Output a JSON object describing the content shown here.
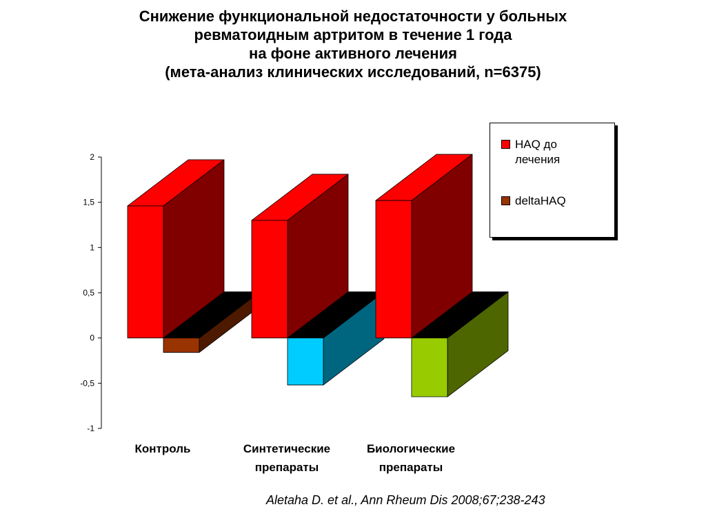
{
  "title": {
    "line1": "Снижение функциональной недостаточности у больных",
    "line2": "ревматоидным артритом в течение 1 года",
    "line3": "на фоне активного лечения",
    "line4": "(мета-анализ клинических исследований, n=6375)"
  },
  "categories": [
    {
      "line1": "Контроль",
      "line2": ""
    },
    {
      "line1": "Синтетические",
      "line2": "препараты"
    },
    {
      "line1": "Биологические",
      "line2": "препараты"
    }
  ],
  "legend": {
    "items": [
      {
        "label_line1": "HAQ до",
        "label_line2": "лечения",
        "color": "#ff0000"
      },
      {
        "label_line1": "deltaHAQ",
        "label_line2": "",
        "color": "#993300"
      }
    ]
  },
  "citation": "Aletaha D. et al., Ann Rheum Dis 2008;67;238-243",
  "chart_data": {
    "type": "bar",
    "style": "3d-clustered",
    "categories": [
      "Контроль",
      "Синтетические препараты",
      "Биологические препараты"
    ],
    "series": [
      {
        "name": "HAQ до лечения",
        "values": [
          1.46,
          1.3,
          1.52
        ],
        "colors": [
          "#ff0000",
          "#ff0000",
          "#ff0000"
        ]
      },
      {
        "name": "deltaHAQ",
        "values": [
          -0.16,
          -0.52,
          -0.65
        ],
        "colors": [
          "#993300",
          "#00ccff",
          "#99cc00"
        ]
      }
    ],
    "y_ticks": [
      "2",
      "1,5",
      "1",
      "0,5",
      "0",
      "-0,5",
      "-1"
    ],
    "y_tick_values": [
      2,
      1.5,
      1,
      0.5,
      0,
      -0.5,
      -1
    ],
    "ylim": [
      -1,
      2
    ],
    "grid": false,
    "legend_position": "top-right"
  }
}
